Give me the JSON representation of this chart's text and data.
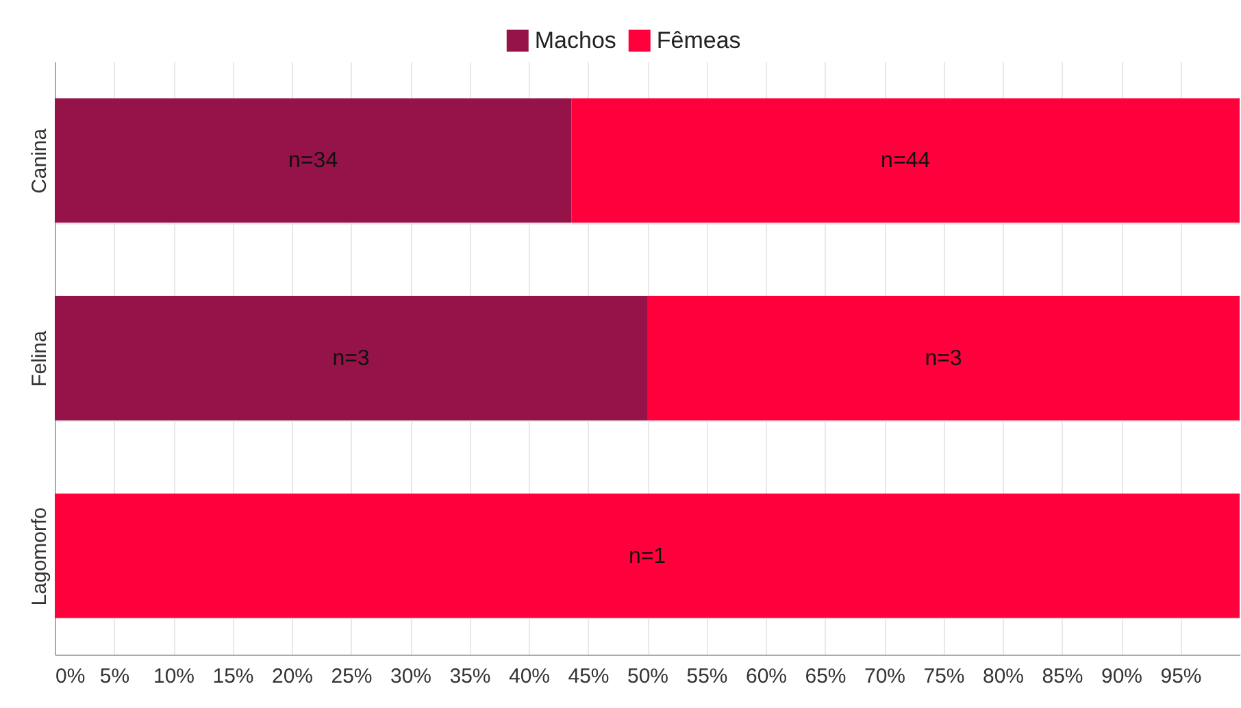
{
  "chart_data": {
    "type": "bar",
    "orientation": "horizontal",
    "stacked": true,
    "categories": [
      "Canina",
      "Felina",
      "Lagomorfo"
    ],
    "series": [
      {
        "name": "Machos",
        "color": "#961349",
        "values": [
          43.6,
          50,
          0
        ]
      },
      {
        "name": "Fêmeas",
        "color": "#ff003c",
        "values": [
          56.4,
          50,
          100
        ]
      }
    ],
    "annotations": [
      "n=34",
      "n=44",
      "n=3",
      "n=3",
      "n=1"
    ],
    "xlim": [
      0,
      100
    ],
    "xticks": [
      {
        "value": 0,
        "label": "0%"
      },
      {
        "value": 5,
        "label": "5%"
      },
      {
        "value": 10,
        "label": "10%"
      },
      {
        "value": 15,
        "label": "15%"
      },
      {
        "value": 20,
        "label": "20%"
      },
      {
        "value": 25,
        "label": "25%"
      },
      {
        "value": 30,
        "label": "30%"
      },
      {
        "value": 35,
        "label": "35%"
      },
      {
        "value": 40,
        "label": "40%"
      },
      {
        "value": 45,
        "label": "45%"
      },
      {
        "value": 50,
        "label": "50%"
      },
      {
        "value": 55,
        "label": "55%"
      },
      {
        "value": 60,
        "label": "60%"
      },
      {
        "value": 65,
        "label": "65%"
      },
      {
        "value": 70,
        "label": "70%"
      },
      {
        "value": 75,
        "label": "75%"
      },
      {
        "value": 80,
        "label": "80%"
      },
      {
        "value": 85,
        "label": "85%"
      },
      {
        "value": 90,
        "label": "90%"
      },
      {
        "value": 95,
        "label": "95%"
      }
    ],
    "grid": true,
    "legend": "top"
  }
}
